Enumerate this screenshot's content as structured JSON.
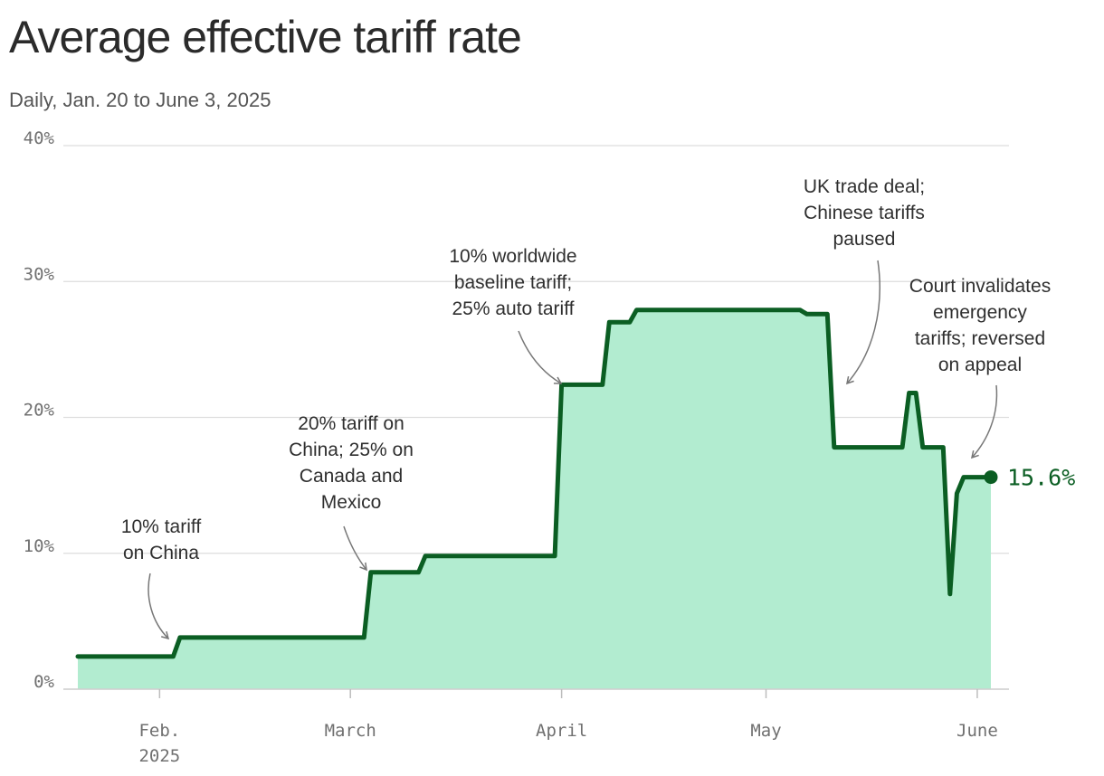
{
  "chart_data": {
    "type": "area",
    "title": "Average effective tariff rate",
    "subtitle": "Daily, Jan. 20 to June 3, 2025",
    "xlabel": "",
    "ylabel": "",
    "y_unit": "%",
    "ylim": [
      0,
      40
    ],
    "y_ticks": [
      {
        "value": 0,
        "label": "0%"
      },
      {
        "value": 10,
        "label": "10%"
      },
      {
        "value": 20,
        "label": "20%"
      },
      {
        "value": 30,
        "label": "30%"
      },
      {
        "value": 40,
        "label": "40%"
      }
    ],
    "xlim": [
      "2025-01-20",
      "2025-06-03"
    ],
    "x_ticks": [
      {
        "date": "2025-02-01",
        "lines": [
          "Feb.",
          "2025"
        ]
      },
      {
        "date": "2025-03-01",
        "lines": [
          "March"
        ]
      },
      {
        "date": "2025-04-01",
        "lines": [
          "April"
        ]
      },
      {
        "date": "2025-05-01",
        "lines": [
          "May"
        ]
      },
      {
        "date": "2025-06-01",
        "lines": [
          "June"
        ]
      }
    ],
    "grid": true,
    "colors": {
      "line": "#0b5e23",
      "fill": "#b2ecd0",
      "grid": "#dddddd",
      "arrow": "#777777"
    },
    "series": [
      {
        "points": [
          {
            "date": "2025-01-20",
            "value": 2.4
          },
          {
            "date": "2025-02-03",
            "value": 2.4
          },
          {
            "date": "2025-02-04",
            "value": 3.8
          },
          {
            "date": "2025-03-03",
            "value": 3.8
          },
          {
            "date": "2025-03-04",
            "value": 8.6
          },
          {
            "date": "2025-03-11",
            "value": 8.6
          },
          {
            "date": "2025-03-12",
            "value": 9.8
          },
          {
            "date": "2025-03-31",
            "value": 9.8
          },
          {
            "date": "2025-04-01",
            "value": 22.4
          },
          {
            "date": "2025-04-07",
            "value": 22.4
          },
          {
            "date": "2025-04-08",
            "value": 27.0
          },
          {
            "date": "2025-04-11",
            "value": 27.0
          },
          {
            "date": "2025-04-12",
            "value": 27.9
          },
          {
            "date": "2025-05-06",
            "value": 27.9
          },
          {
            "date": "2025-05-07",
            "value": 27.6
          },
          {
            "date": "2025-05-10",
            "value": 27.6
          },
          {
            "date": "2025-05-11",
            "value": 17.8
          },
          {
            "date": "2025-05-21",
            "value": 17.8
          },
          {
            "date": "2025-05-22",
            "value": 21.8
          },
          {
            "date": "2025-05-23",
            "value": 21.8
          },
          {
            "date": "2025-05-24",
            "value": 17.8
          },
          {
            "date": "2025-05-27",
            "value": 17.8
          },
          {
            "date": "2025-05-28",
            "value": 7.0
          },
          {
            "date": "2025-05-29",
            "value": 14.4
          },
          {
            "date": "2025-05-30",
            "value": 15.6
          },
          {
            "date": "2025-06-03",
            "value": 15.6
          }
        ]
      }
    ],
    "end_label": "15.6%",
    "annotations": [
      {
        "lines": [
          "10% tariff",
          "on China"
        ],
        "date": "2025-02-04",
        "value": 3.8
      },
      {
        "lines": [
          "20% tariff on",
          "China; 25% on",
          "Canada and",
          "Mexico"
        ],
        "date": "2025-03-04",
        "value": 8.6
      },
      {
        "lines": [
          "10% worldwide",
          "baseline tariff;",
          "25% auto tariff"
        ],
        "date": "2025-04-01",
        "value": 22.4
      },
      {
        "lines": [
          "UK trade deal;",
          "Chinese tariffs",
          "paused"
        ],
        "date": "2025-05-12",
        "value": 22.4
      },
      {
        "lines": [
          "Court invalidates",
          "emergency",
          "tariffs; reversed",
          "on appeal"
        ],
        "date": "2025-05-30",
        "value": 17.0
      }
    ]
  }
}
